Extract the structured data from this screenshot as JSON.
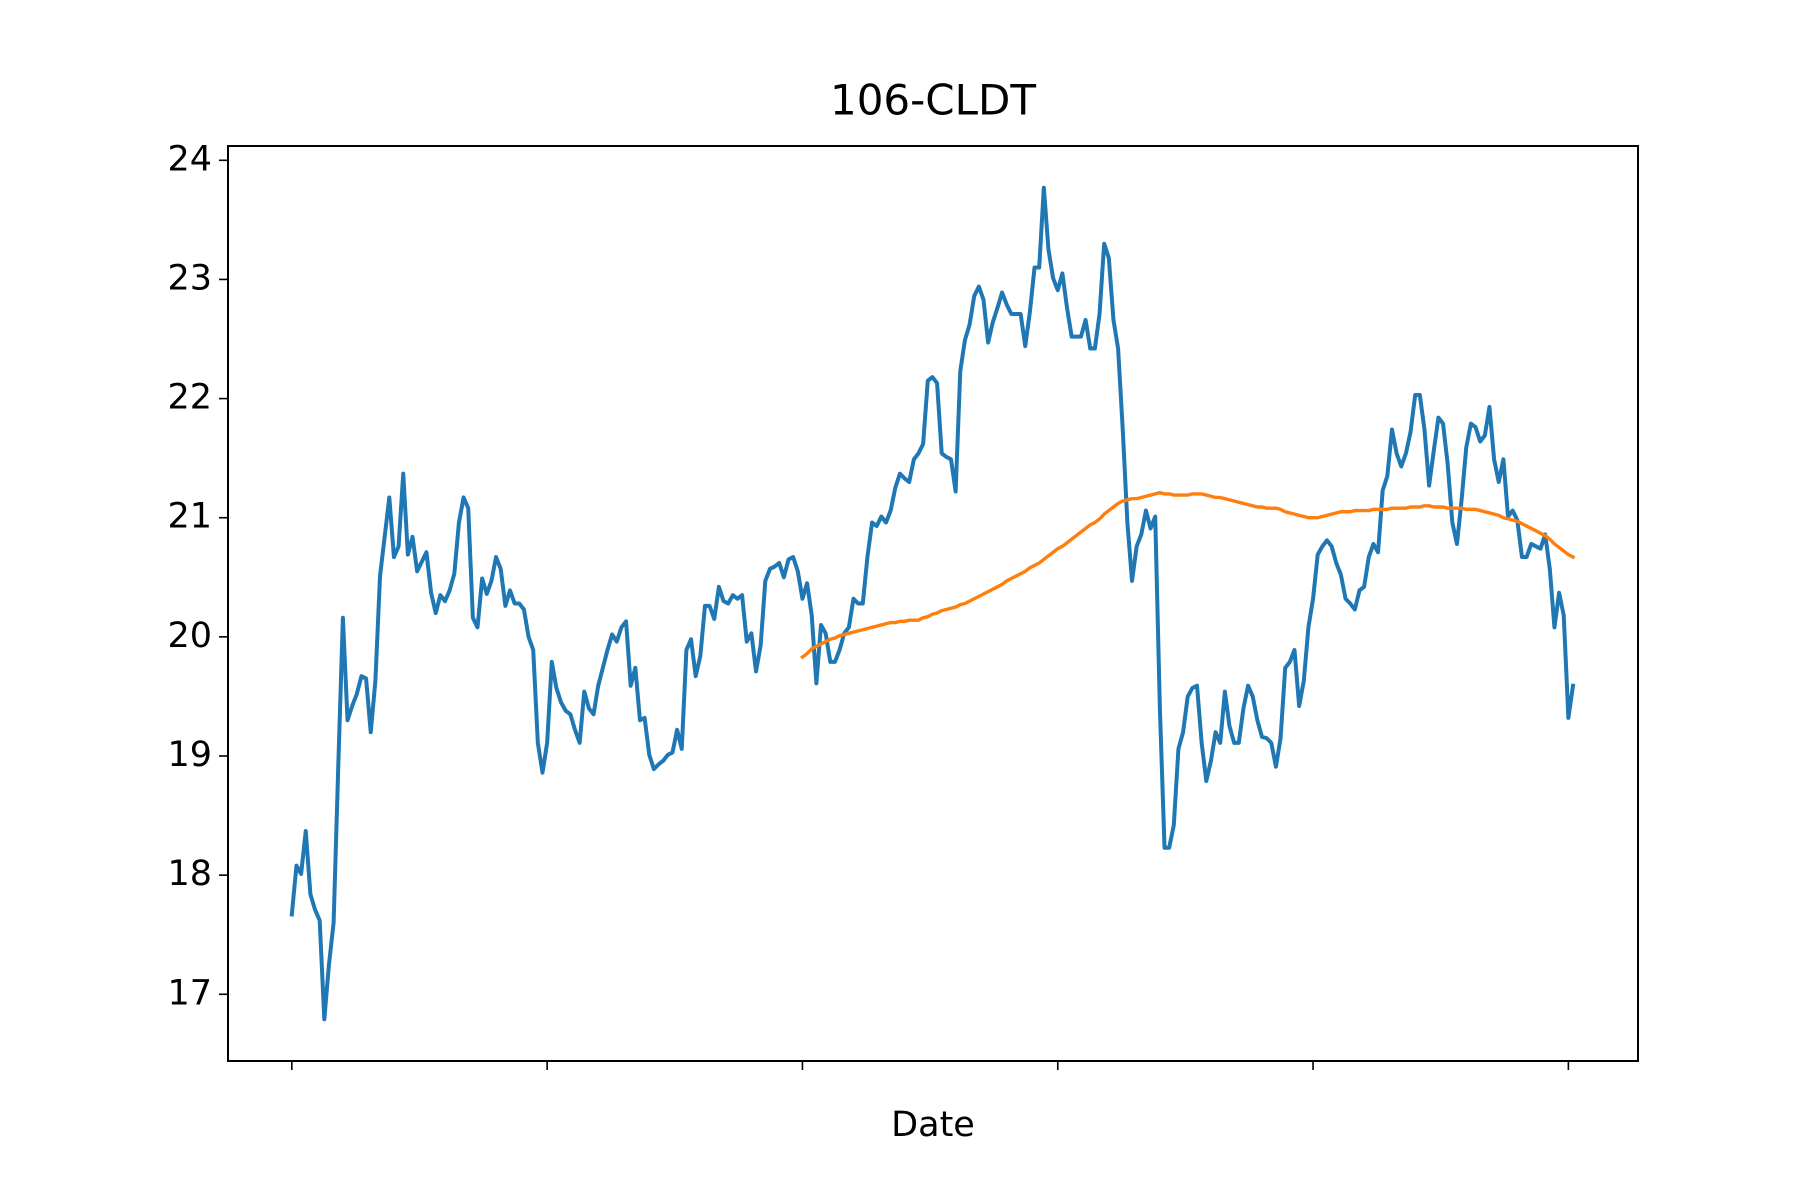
{
  "chart_data": {
    "type": "line",
    "title": "106-CLDT",
    "x_label": "Date",
    "xlim": [
      -13.75,
      290
    ],
    "xticks": [
      0,
      55,
      110,
      165,
      220,
      275
    ],
    "ylim": [
      16.44,
      24.12
    ],
    "yticks": [
      17,
      18,
      19,
      20,
      21,
      22,
      23,
      24
    ],
    "grid": false,
    "series": [
      {
        "color": "#1f77b4",
        "values": [
          17.67,
          18.08,
          18.01,
          18.37,
          17.84,
          17.71,
          17.62,
          16.79,
          17.25,
          17.6,
          18.91,
          20.16,
          19.3,
          19.42,
          19.52,
          19.67,
          19.65,
          19.2,
          19.63,
          20.51,
          20.84,
          21.17,
          20.67,
          20.76,
          21.37,
          20.69,
          20.84,
          20.55,
          20.63,
          20.71,
          20.37,
          20.2,
          20.35,
          20.3,
          20.39,
          20.53,
          20.96,
          21.17,
          21.08,
          20.16,
          20.08,
          20.49,
          20.36,
          20.47,
          20.67,
          20.57,
          20.26,
          20.39,
          20.28,
          20.28,
          20.23,
          20.0,
          19.89,
          19.11,
          18.86,
          19.11,
          19.79,
          19.57,
          19.45,
          19.38,
          19.35,
          19.22,
          19.11,
          19.54,
          19.4,
          19.35,
          19.59,
          19.74,
          19.89,
          20.02,
          19.96,
          20.08,
          20.13,
          19.59,
          19.74,
          19.3,
          19.32,
          19.01,
          18.89,
          18.93,
          18.96,
          19.01,
          19.03,
          19.22,
          19.06,
          19.89,
          19.98,
          19.67,
          19.84,
          20.26,
          20.26,
          20.15,
          20.42,
          20.3,
          20.28,
          20.35,
          20.32,
          20.35,
          19.96,
          20.03,
          19.71,
          19.93,
          20.47,
          20.57,
          20.59,
          20.62,
          20.5,
          20.65,
          20.67,
          20.55,
          20.32,
          20.45,
          20.18,
          19.61,
          20.1,
          20.03,
          19.79,
          19.79,
          19.89,
          20.03,
          20.08,
          20.32,
          20.28,
          20.28,
          20.67,
          20.96,
          20.93,
          21.01,
          20.96,
          21.06,
          21.25,
          21.37,
          21.33,
          21.3,
          21.49,
          21.54,
          21.62,
          22.15,
          22.18,
          22.13,
          21.54,
          21.51,
          21.49,
          21.22,
          22.23,
          22.49,
          22.62,
          22.86,
          22.94,
          22.83,
          22.47,
          22.64,
          22.76,
          22.89,
          22.79,
          22.71,
          22.71,
          22.71,
          22.44,
          22.73,
          23.1,
          23.1,
          23.77,
          23.25,
          23.01,
          22.91,
          23.05,
          22.76,
          22.52,
          22.52,
          22.52,
          22.66,
          22.42,
          22.42,
          22.71,
          23.3,
          23.18,
          22.66,
          22.42,
          21.74,
          20.96,
          20.47,
          20.76,
          20.86,
          21.06,
          20.91,
          21.01,
          19.4,
          18.23,
          18.23,
          18.42,
          19.06,
          19.2,
          19.5,
          19.57,
          19.59,
          19.11,
          18.79,
          18.96,
          19.2,
          19.11,
          19.54,
          19.25,
          19.11,
          19.11,
          19.4,
          19.59,
          19.5,
          19.3,
          19.16,
          19.15,
          19.11,
          18.91,
          19.15,
          19.74,
          19.79,
          19.89,
          19.42,
          19.63,
          20.08,
          20.32,
          20.69,
          20.76,
          20.81,
          20.76,
          20.62,
          20.52,
          20.32,
          20.28,
          20.23,
          20.39,
          20.42,
          20.67,
          20.78,
          20.71,
          21.23,
          21.35,
          21.74,
          21.54,
          21.43,
          21.54,
          21.72,
          22.03,
          22.03,
          21.74,
          21.27,
          21.56,
          21.84,
          21.79,
          21.45,
          20.96,
          20.78,
          21.15,
          21.59,
          21.79,
          21.76,
          21.64,
          21.69,
          21.93,
          21.49,
          21.3,
          21.49,
          21.01,
          21.06,
          20.98,
          20.67,
          20.67,
          20.78,
          20.76,
          20.74,
          20.86,
          20.57,
          20.08,
          20.37,
          20.18,
          19.32,
          19.59
        ]
      },
      {
        "color": "#ff7f0e",
        "values": [
          null,
          null,
          null,
          null,
          null,
          null,
          null,
          null,
          null,
          null,
          null,
          null,
          null,
          null,
          null,
          null,
          null,
          null,
          null,
          null,
          null,
          null,
          null,
          null,
          null,
          null,
          null,
          null,
          null,
          null,
          null,
          null,
          null,
          null,
          null,
          null,
          null,
          null,
          null,
          null,
          null,
          null,
          null,
          null,
          null,
          null,
          null,
          null,
          null,
          null,
          null,
          null,
          null,
          null,
          null,
          null,
          null,
          null,
          null,
          null,
          null,
          null,
          null,
          null,
          null,
          null,
          null,
          null,
          null,
          null,
          null,
          null,
          null,
          null,
          null,
          null,
          null,
          null,
          null,
          null,
          null,
          null,
          null,
          null,
          null,
          null,
          null,
          null,
          null,
          null,
          null,
          null,
          null,
          null,
          null,
          null,
          null,
          null,
          null,
          null,
          null,
          null,
          null,
          null,
          null,
          null,
          null,
          null,
          null,
          null,
          19.83,
          19.86,
          19.9,
          19.92,
          19.94,
          19.96,
          19.98,
          19.99,
          20.01,
          20.02,
          20.03,
          20.04,
          20.05,
          20.06,
          20.07,
          20.08,
          20.09,
          20.1,
          20.11,
          20.12,
          20.12,
          20.13,
          20.13,
          20.14,
          20.14,
          20.14,
          20.16,
          20.17,
          20.19,
          20.2,
          20.22,
          20.23,
          20.24,
          20.25,
          20.27,
          20.28,
          20.3,
          20.32,
          20.34,
          20.36,
          20.38,
          20.4,
          20.42,
          20.44,
          20.47,
          20.49,
          20.51,
          20.53,
          20.55,
          20.58,
          20.6,
          20.62,
          20.65,
          20.68,
          20.71,
          20.74,
          20.76,
          20.79,
          20.82,
          20.85,
          20.88,
          20.91,
          20.94,
          20.96,
          20.99,
          21.03,
          21.06,
          21.09,
          21.12,
          21.14,
          21.15,
          21.16,
          21.16,
          21.17,
          21.18,
          21.19,
          21.2,
          21.21,
          21.2,
          21.2,
          21.19,
          21.19,
          21.19,
          21.19,
          21.2,
          21.2,
          21.2,
          21.19,
          21.18,
          21.17,
          21.17,
          21.16,
          21.15,
          21.14,
          21.13,
          21.12,
          21.11,
          21.1,
          21.09,
          21.09,
          21.08,
          21.08,
          21.08,
          21.07,
          21.05,
          21.04,
          21.03,
          21.02,
          21.01,
          21.0,
          21.0,
          21.0,
          21.01,
          21.02,
          21.03,
          21.04,
          21.05,
          21.05,
          21.05,
          21.06,
          21.06,
          21.06,
          21.06,
          21.07,
          21.07,
          21.07,
          21.07,
          21.08,
          21.08,
          21.08,
          21.08,
          21.09,
          21.09,
          21.09,
          21.1,
          21.1,
          21.09,
          21.09,
          21.09,
          21.08,
          21.08,
          21.08,
          21.08,
          21.07,
          21.07,
          21.07,
          21.06,
          21.05,
          21.04,
          21.03,
          21.02,
          21.0,
          20.99,
          20.98,
          20.97,
          20.95,
          20.93,
          20.91,
          20.89,
          20.87,
          20.85,
          20.82,
          20.78,
          20.75,
          20.72,
          20.69,
          20.67
        ]
      }
    ]
  }
}
